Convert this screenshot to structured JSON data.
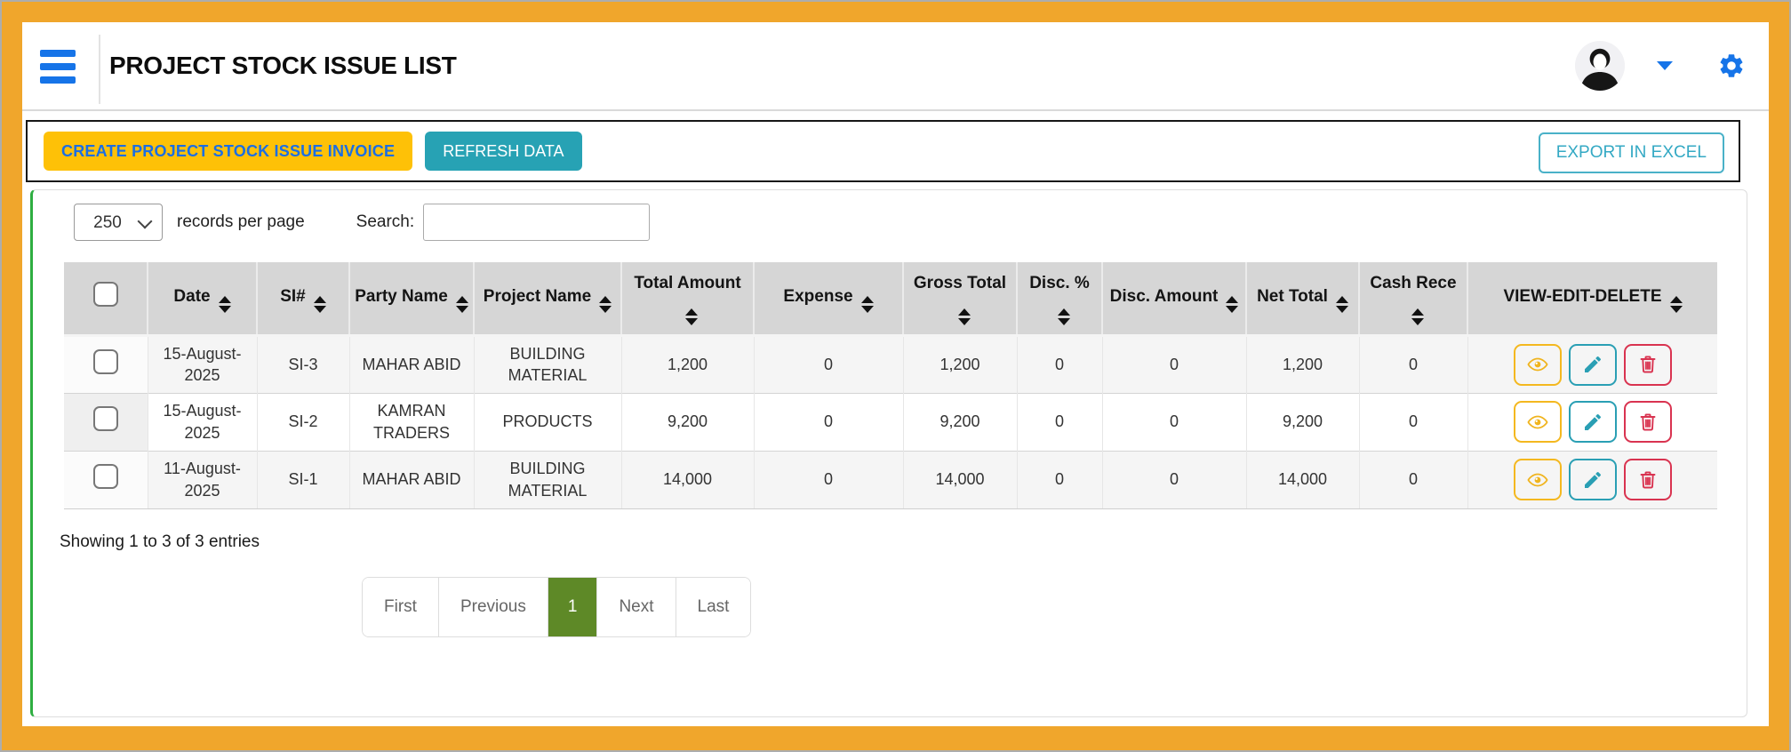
{
  "app": {
    "title": "PROJECT STOCK ISSUE LIST"
  },
  "header": {
    "menu_icon": "hamburger-menu",
    "avatar_icon": "user-avatar",
    "caret_icon": "chevron-down",
    "settings_icon": "gear"
  },
  "toolbar": {
    "create_button": "CREATE PROJECT STOCK ISSUE INVOICE",
    "refresh_button": "REFRESH DATA",
    "export_button": "EXPORT IN EXCEL"
  },
  "controls": {
    "page_size": "250",
    "records_label": "records per page",
    "search_label": "Search:",
    "search_value": ""
  },
  "table": {
    "columns": [
      {
        "label": "",
        "sortable": false
      },
      {
        "label": "Date",
        "sortable": true
      },
      {
        "label": "SI#",
        "sortable": true
      },
      {
        "label": "Party Name",
        "sortable": true
      },
      {
        "label": "Project Name",
        "sortable": true
      },
      {
        "label": "Total Amount",
        "sortable": true
      },
      {
        "label": "Expense",
        "sortable": true
      },
      {
        "label": "Gross Total",
        "sortable": true
      },
      {
        "label": "Disc. %",
        "sortable": true
      },
      {
        "label": "Disc. Amount",
        "sortable": true
      },
      {
        "label": "Net Total",
        "sortable": true
      },
      {
        "label": "Cash Rece",
        "sortable": true
      },
      {
        "label": "VIEW-EDIT-DELETE",
        "sortable": true
      }
    ],
    "rows": [
      {
        "date": "15-August-2025",
        "si": "SI-3",
        "party": "MAHAR ABID",
        "project": "BUILDING MATERIAL",
        "total_amount": "1,200",
        "expense": "0",
        "gross_total": "1,200",
        "disc_percent": "0",
        "disc_amount": "0",
        "net_total": "1,200",
        "cash_rece": "0"
      },
      {
        "date": "15-August-2025",
        "si": "SI-2",
        "party": "KAMRAN TRADERS",
        "project": "PRODUCTS",
        "total_amount": "9,200",
        "expense": "0",
        "gross_total": "9,200",
        "disc_percent": "0",
        "disc_amount": "0",
        "net_total": "9,200",
        "cash_rece": "0"
      },
      {
        "date": "11-August-2025",
        "si": "SI-1",
        "party": "MAHAR ABID",
        "project": "BUILDING MATERIAL",
        "total_amount": "14,000",
        "expense": "0",
        "gross_total": "14,000",
        "disc_percent": "0",
        "disc_amount": "0",
        "net_total": "14,000",
        "cash_rece": "0"
      }
    ],
    "row_actions": [
      "view",
      "edit",
      "delete"
    ]
  },
  "footer": {
    "showing_text": "Showing 1 to 3 of 3 entries",
    "pagination": [
      "First",
      "Previous",
      "1",
      "Next",
      "Last"
    ],
    "active_page": "1"
  },
  "colors": {
    "frame_orange": "#F0A62C",
    "accent_blue": "#1674E8",
    "create_button_yellow": "#FEC107",
    "create_button_text_blue": "#1B6EE4",
    "refresh_button_teal": "#27A2B4",
    "export_button_teal": "#34A9C4",
    "table_header_gray": "#D6D6D6",
    "card_border_green": "#2EAE41",
    "pagination_active_green": "#5E8927",
    "view_icon_gold": "#F0B41E",
    "edit_icon_teal": "#2A9FB4",
    "delete_icon_red": "#D93350"
  }
}
